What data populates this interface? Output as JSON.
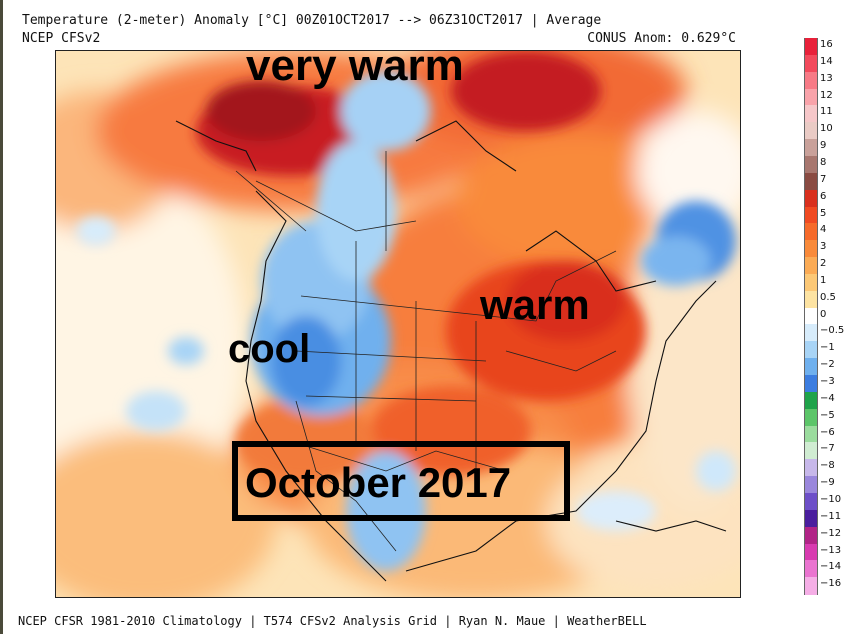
{
  "header": {
    "line1": "Temperature (2-meter) Anomaly  [°C] 00Z01OCT2017 --> 06Z31OCT2017 | Average",
    "line2_left": "NCEP CFSv2",
    "line2_right": "CONUS Anom: 0.629°C"
  },
  "footer": "NCEP CFSR 1981-2010 Climatology | T574 CFSv2 Analysis Grid | Ryan N. Maue | WeatherBELL",
  "annotations": {
    "very_warm": "very warm",
    "warm": "warm",
    "cool": "cool",
    "month": "October 2017"
  },
  "legend": {
    "labels": [
      "16",
      "14",
      "13",
      "12",
      "11",
      "10",
      "9",
      "8",
      "7",
      "6",
      "5",
      "4",
      "3",
      "2",
      "1",
      "0.5",
      "0",
      "−0.5",
      "−1",
      "−2",
      "−3",
      "−4",
      "−5",
      "−6",
      "−7",
      "−8",
      "−9",
      "−10",
      "−11",
      "−12",
      "−13",
      "−14",
      "−16"
    ],
    "colors": [
      "#e8213a",
      "#f24a5c",
      "#f77a86",
      "#f9a3aa",
      "#f6c7c9",
      "#eacbc5",
      "#c9a19a",
      "#a8776f",
      "#8a4b42",
      "#d9301e",
      "#f04a22",
      "#f66a2a",
      "#f98a3a",
      "#fbab55",
      "#fcc876",
      "#fde3a2",
      "#ffffff",
      "#d7ecfb",
      "#a8d4f6",
      "#6fb0ee",
      "#3c7de0",
      "#1fa34a",
      "#5cc569",
      "#9bdc9e",
      "#d0ecd2",
      "#c7b8ea",
      "#9a87dc",
      "#6d4fc8",
      "#4a1e9e",
      "#b12487",
      "#d83bb0",
      "#ea74d0",
      "#f5aee6"
    ],
    "colorful_dims": "cell colors top to bottom"
  },
  "map": {
    "region": "North America",
    "legend_colors_used": {
      "hot": "#b3161c",
      "warm": "#f46a2c",
      "mild": "#fbae6a",
      "slight": "#fde0b0",
      "neutral": "#fffaf0",
      "cool": "#9fd0f4",
      "cold": "#4f92e3",
      "ocean_cool": "#cfe9fb"
    }
  }
}
